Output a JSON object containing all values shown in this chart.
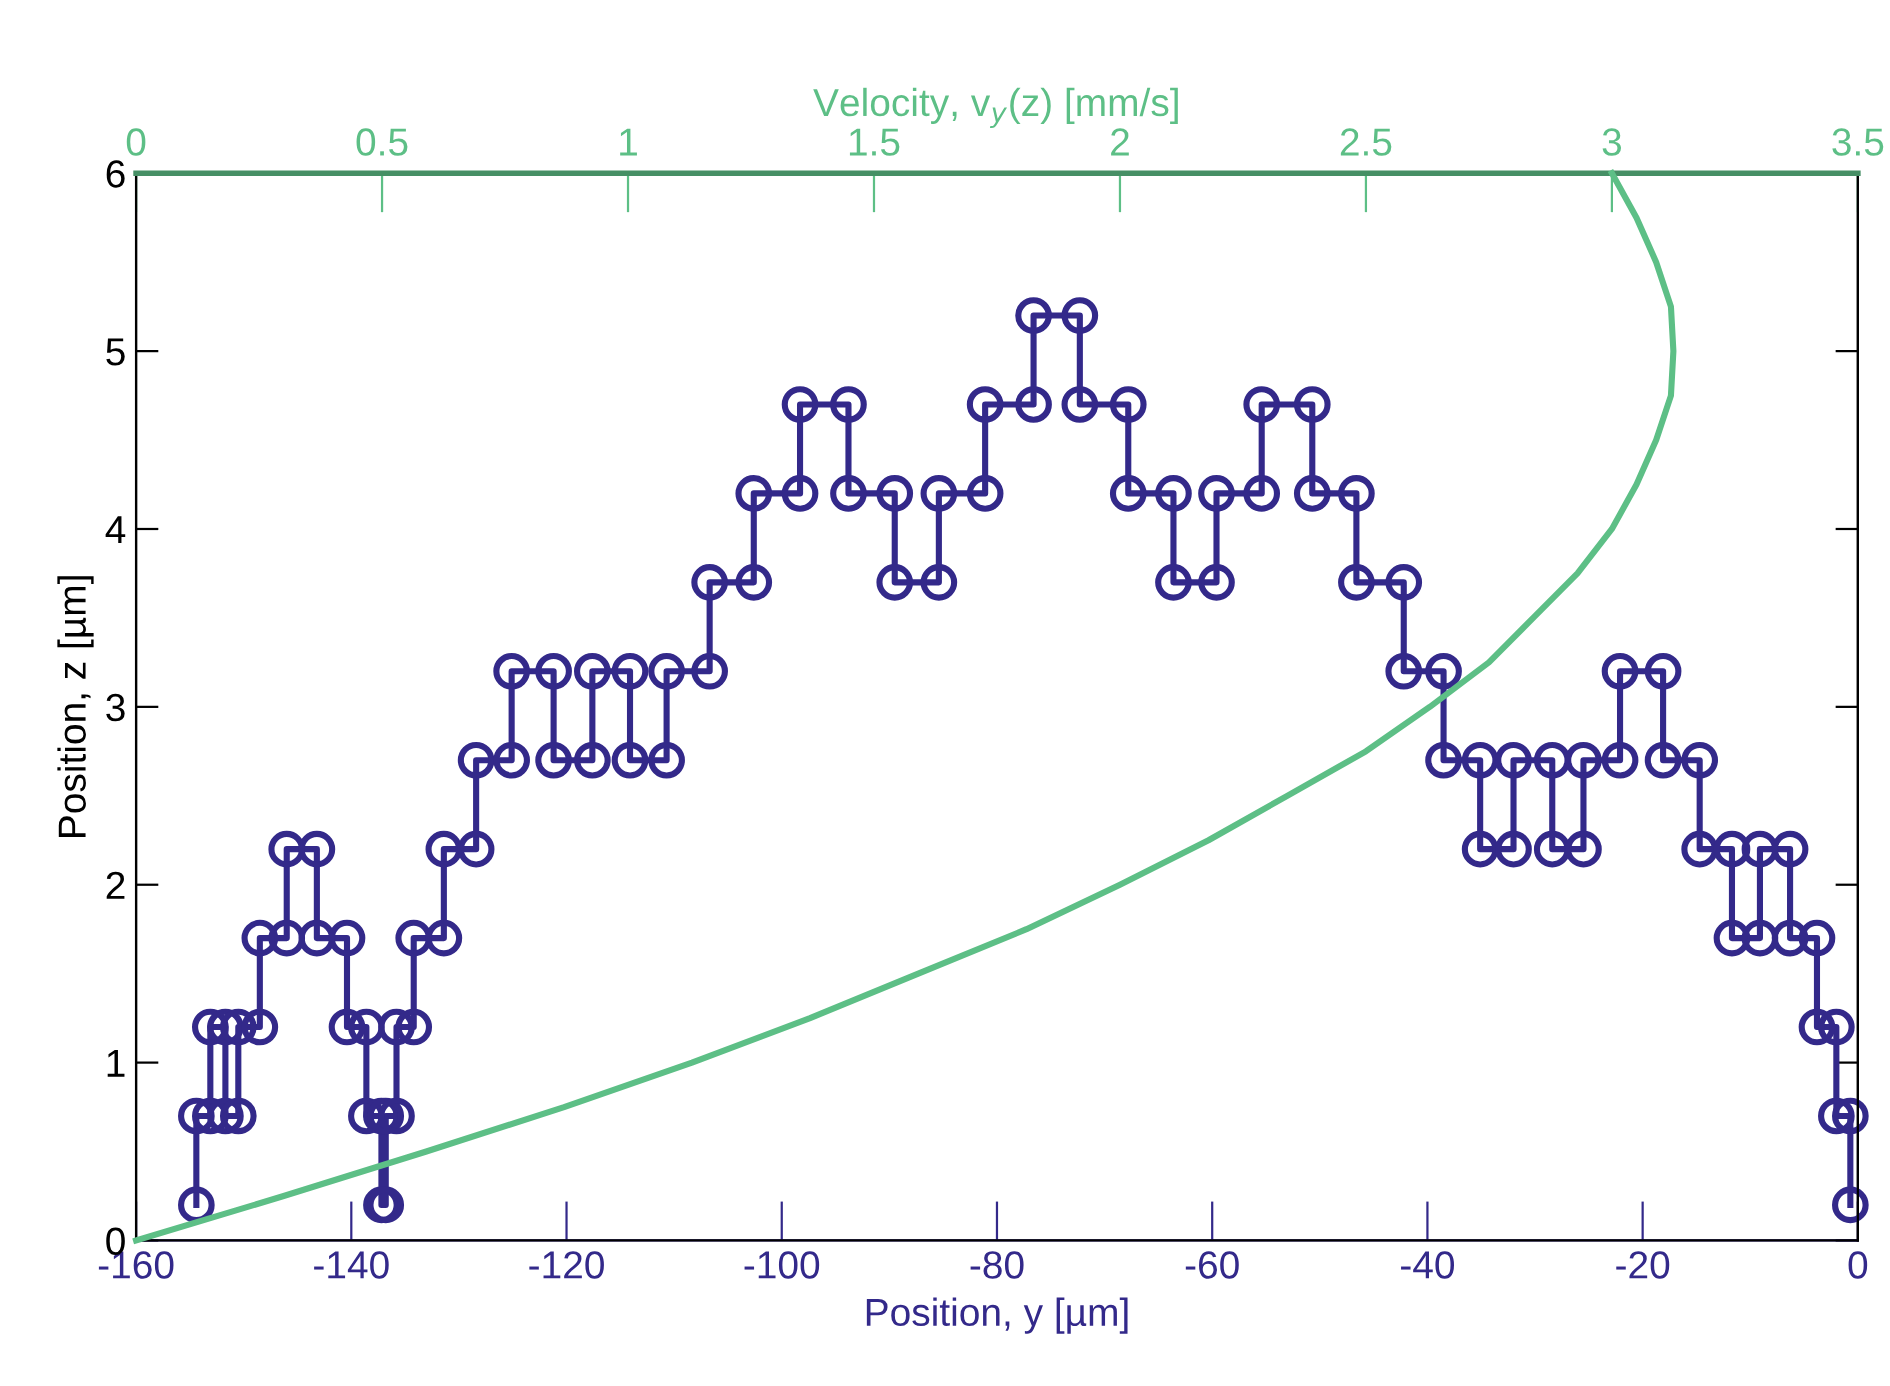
{
  "chart_data": {
    "type": "line",
    "xlabel": "Position, y [µm]",
    "ylabel": "Position, z [µm]",
    "x2label": "Velocity, v$_{y}$(z) [mm/s]",
    "xlim": [
      -160,
      0
    ],
    "xticks": [
      -160,
      -140,
      -120,
      -100,
      -80,
      -60,
      -40,
      -20,
      0
    ],
    "ylim": [
      0,
      6
    ],
    "yticks": [
      0,
      1,
      2,
      3,
      4,
      5,
      6
    ],
    "x2lim": [
      0,
      3.5
    ],
    "x2ticks": [
      0,
      0.5,
      1,
      1.5,
      2,
      2.5,
      3,
      3.5
    ],
    "grid": false,
    "series": [
      {
        "color": "#33298a",
        "marker": "circle",
        "line_style": "solid",
        "x": [
          -154.4,
          -154.4,
          -153.1,
          -153.1,
          -151.7,
          -151.7,
          -150.5,
          -150.5,
          -148.5,
          -148.5,
          -146.0,
          -146.0,
          -143.2,
          -143.2,
          -140.4,
          -140.4,
          -138.6,
          -138.6,
          -137.2,
          -137.2,
          -136.8,
          -136.8,
          -135.8,
          -135.8,
          -134.2,
          -134.2,
          -131.4,
          -131.4,
          -128.4,
          -128.4,
          -125.1,
          -125.1,
          -121.2,
          -121.2,
          -117.6,
          -117.6,
          -114.1,
          -114.1,
          -110.7,
          -110.7,
          -106.7,
          -106.7,
          -102.6,
          -102.6,
          -98.3,
          -98.3,
          -93.8,
          -93.8,
          -89.5,
          -89.5,
          -85.4,
          -85.4,
          -81.1,
          -81.1,
          -76.6,
          -76.6,
          -72.3,
          -72.3,
          -67.8,
          -67.8,
          -63.6,
          -63.6,
          -59.6,
          -59.6,
          -55.4,
          -55.4,
          -50.7,
          -50.7,
          -46.6,
          -46.6,
          -42.2,
          -42.2,
          -38.5,
          -38.5,
          -35.1,
          -35.1,
          -32.0,
          -32.0,
          -28.4,
          -28.4,
          -25.5,
          -25.5,
          -22.1,
          -22.1,
          -18.1,
          -18.1,
          -14.7,
          -14.7,
          -11.7,
          -11.7,
          -9.1,
          -9.1,
          -6.3,
          -6.3,
          -3.8,
          -3.8,
          -2.0,
          -2.0,
          -0.7,
          -0.7
        ],
        "values": [
          0.2,
          0.7,
          0.7,
          1.2,
          1.2,
          0.7,
          0.7,
          1.2,
          1.2,
          1.7,
          1.7,
          2.2,
          2.2,
          1.7,
          1.7,
          1.2,
          1.2,
          0.7,
          0.7,
          0.2,
          0.2,
          0.7,
          0.7,
          1.2,
          1.2,
          1.7,
          1.7,
          2.2,
          2.2,
          2.7,
          2.7,
          3.2,
          3.2,
          2.7,
          2.7,
          3.2,
          3.2,
          2.7,
          2.7,
          3.2,
          3.2,
          3.7,
          3.7,
          4.2,
          4.2,
          4.7,
          4.7,
          4.2,
          4.2,
          3.7,
          3.7,
          4.2,
          4.2,
          4.7,
          4.7,
          5.2,
          5.2,
          4.7,
          4.7,
          4.2,
          4.2,
          3.7,
          3.7,
          4.2,
          4.2,
          4.7,
          4.7,
          4.2,
          4.2,
          3.7,
          3.7,
          3.2,
          3.2,
          2.7,
          2.7,
          2.2,
          2.2,
          2.7,
          2.7,
          2.2,
          2.2,
          2.7,
          2.7,
          3.2,
          3.2,
          2.7,
          2.7,
          2.2,
          2.2,
          1.7,
          1.7,
          2.2,
          2.2,
          1.7,
          1.7,
          1.2,
          1.2,
          0.7,
          0.7,
          0.2
        ]
      },
      {
        "color": "#5dbf86",
        "axis": "x2",
        "marker": "none",
        "line_style": "solid",
        "x": [
          0,
          0.3,
          0.59,
          0.87,
          1.13,
          1.37,
          1.59,
          1.81,
          2.0,
          2.18,
          2.34,
          2.5,
          2.63,
          2.75,
          2.84,
          2.93,
          3.0,
          3.05,
          3.09,
          3.12,
          3.125,
          3.12,
          3.09,
          3.05,
          3.0
        ],
        "values": [
          0,
          0.25,
          0.5,
          0.75,
          1,
          1.25,
          1.5,
          1.75,
          2,
          2.25,
          2.5,
          2.75,
          3,
          3.25,
          3.5,
          3.75,
          4,
          4.25,
          4.5,
          4.75,
          5,
          5.25,
          5.5,
          5.75,
          6
        ]
      }
    ]
  }
}
